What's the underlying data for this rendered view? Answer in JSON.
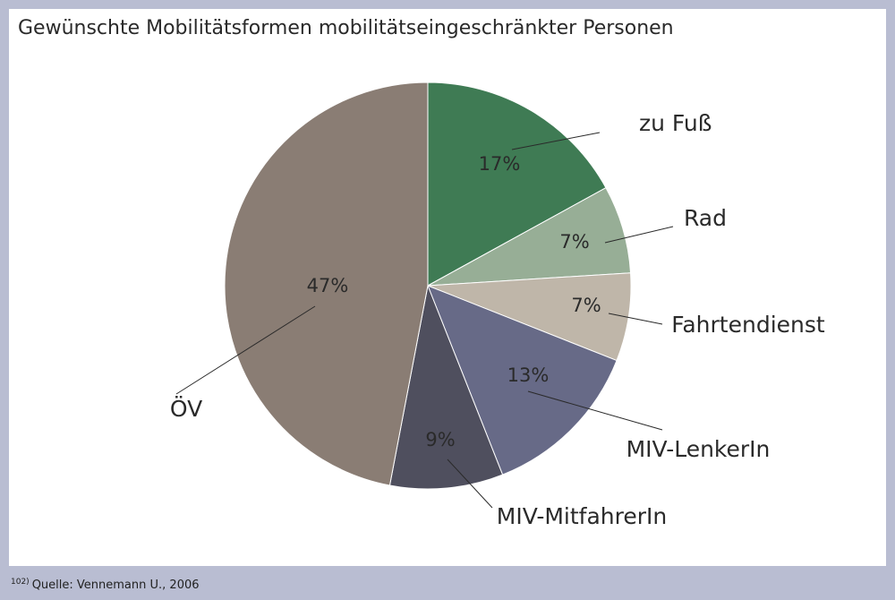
{
  "chart_data": {
    "type": "pie",
    "title": "Gewünschte Mobilitätsformen mobilitätseingeschränkter Personen",
    "slices": [
      {
        "name": "zu Fuß",
        "value": 17,
        "value_label": "17%",
        "color": "#3f7b54"
      },
      {
        "name": "Rad",
        "value": 7,
        "value_label": "7%",
        "color": "#97ae96"
      },
      {
        "name": "Fahrtendienst",
        "value": 7,
        "value_label": "7%",
        "color": "#bfb6a9"
      },
      {
        "name": "MIV-LenkerIn",
        "value": 13,
        "value_label": "13%",
        "color": "#676a87"
      },
      {
        "name": "MIV-MitfahrerIn",
        "value": 9,
        "value_label": "9%",
        "color": "#4f4f5e"
      },
      {
        "name": "ÖV",
        "value": 47,
        "value_label": "47%",
        "color": "#8a7d74"
      }
    ]
  },
  "footnote": {
    "number": "102)",
    "text": "Quelle: Vennemann U., 2006"
  }
}
